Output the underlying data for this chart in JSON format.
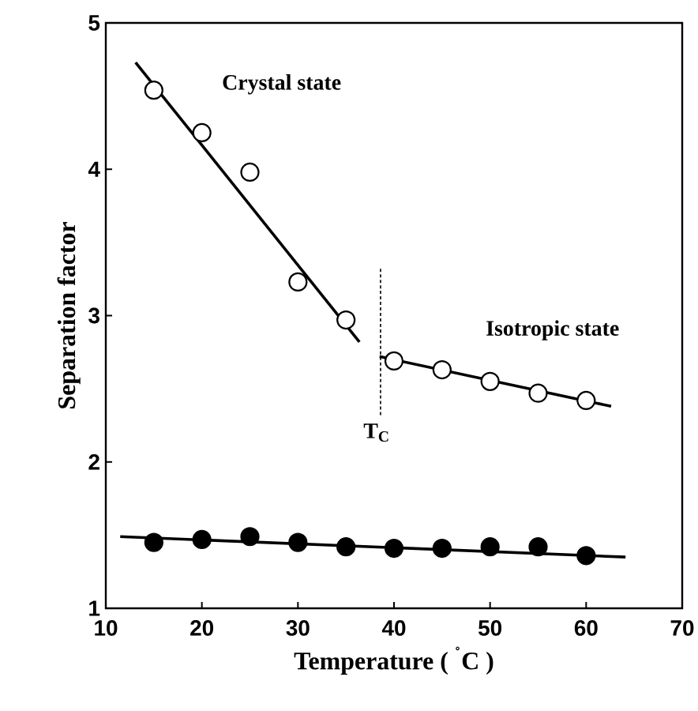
{
  "chart_data": {
    "type": "scatter",
    "xlabel": "Temperature ( $^{˚}$C )",
    "ylabel": "Separation factor",
    "xlim": [
      10,
      70
    ],
    "xticks": [
      10,
      20,
      30,
      40,
      50,
      60,
      70
    ],
    "ylim": [
      1,
      5
    ],
    "yticks": [
      1,
      2,
      3,
      4,
      5
    ],
    "series": [
      {
        "type": "line",
        "color": "#000000",
        "x": [
          13.1,
          36.4
        ],
        "values": [
          4.73,
          2.82
        ],
        "marker": "none",
        "line_style": "solid"
      },
      {
        "type": "line",
        "color": "#000000",
        "x": [
          38.5,
          62.6
        ],
        "values": [
          2.72,
          2.38
        ],
        "marker": "none",
        "line_style": "solid"
      },
      {
        "type": "line",
        "color": "#000000",
        "x": [
          11.5,
          64.1
        ],
        "values": [
          1.49,
          1.35
        ],
        "marker": "none",
        "line_style": "solid"
      },
      {
        "type": "line",
        "color": "#000000",
        "x": [
          38.6,
          38.6
        ],
        "values": [
          3.32,
          2.32
        ],
        "marker": "none",
        "line_style": "dashed"
      },
      {
        "color": "#ffffff",
        "x": [
          15,
          20,
          25,
          30,
          35,
          40,
          45,
          50,
          55,
          60
        ],
        "values": [
          4.54,
          4.25,
          3.98,
          3.23,
          2.97,
          2.69,
          2.63,
          2.55,
          2.47,
          2.42
        ],
        "marker": "circle"
      },
      {
        "color": "#000000",
        "x": [
          15,
          20,
          25,
          30,
          35,
          40,
          45,
          50,
          55,
          60
        ],
        "values": [
          1.45,
          1.47,
          1.49,
          1.45,
          1.42,
          1.41,
          1.41,
          1.42,
          1.42,
          1.36
        ],
        "marker": "circle"
      }
    ],
    "annotations": [
      "Crystal state",
      "Isotropic state",
      "T$_{C}$"
    ]
  }
}
